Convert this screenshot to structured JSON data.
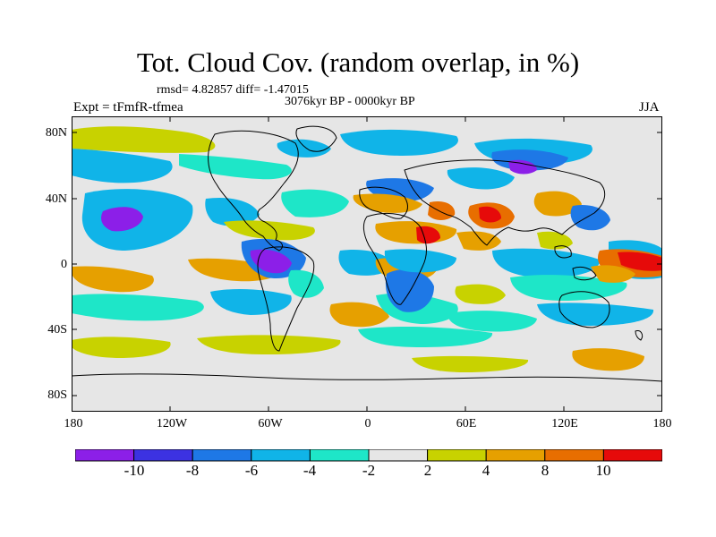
{
  "title": "Tot. Cloud Cov. (random overlap, in %)",
  "stats": "rmsd= 4.82857 diff= -1.47015",
  "subtitle": "3076kyr BP - 0000kyr BP",
  "experiment": "Expt = tFmfR-tfmea",
  "season": "JJA",
  "y_ticks": [
    "80N",
    "40N",
    "0",
    "40S",
    "80S"
  ],
  "x_ticks": [
    "180",
    "120W",
    "60W",
    "0",
    "60E",
    "120E",
    "180"
  ],
  "colorbar": {
    "labels": [
      "-10",
      "-8",
      "-6",
      "-4",
      "-2",
      "2",
      "4",
      "8",
      "10"
    ],
    "colors": [
      "#8c1fe8",
      "#3c32e2",
      "#1e78e6",
      "#10b4e8",
      "#1ee6c8",
      "#e6e6e6",
      "#c8d200",
      "#e6a000",
      "#e86e00",
      "#e60a0a"
    ]
  },
  "palette": {
    "purple": "#8c1fe8",
    "blue": "#3c32e2",
    "medblue": "#1e78e6",
    "cyan": "#10b4e8",
    "teal": "#1ee6c8",
    "neutral": "#e6e6e6",
    "yellow": "#c8d200",
    "orange": "#e6a000",
    "darkorange": "#e86e00",
    "red": "#e60a0a"
  }
}
